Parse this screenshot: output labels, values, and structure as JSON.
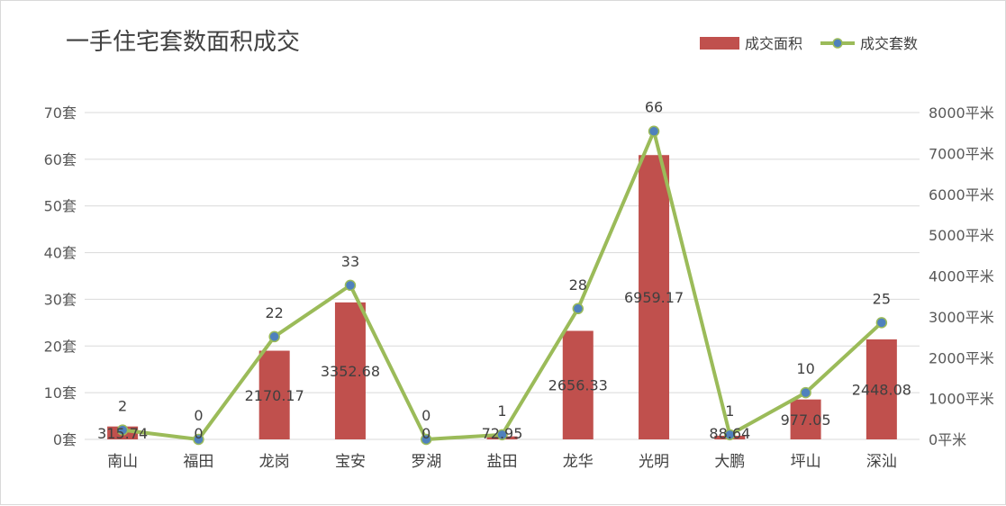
{
  "chart_data": {
    "type": "bar",
    "title": "一手住宅套数面积成交",
    "categories": [
      "南山",
      "福田",
      "龙岗",
      "宝安",
      "罗湖",
      "盐田",
      "龙华",
      "光明",
      "大鹏",
      "坪山",
      "深汕"
    ],
    "series": [
      {
        "name": "成交面积",
        "type": "bar",
        "axis": "right",
        "color": "#c0504d",
        "values": [
          315.74,
          0,
          2170.17,
          3352.68,
          0,
          72.95,
          2656.33,
          6959.17,
          88.64,
          977.05,
          2448.08
        ],
        "labels": [
          "315.74",
          "0",
          "2170.17",
          "3352.68",
          "0",
          "72.95",
          "2656.33",
          "6959.17",
          "88.64",
          "977.05",
          "2448.08"
        ]
      },
      {
        "name": "成交套数",
        "type": "line",
        "axis": "left",
        "color": "#9bbb59",
        "marker_color": "#4f81bd",
        "values": [
          2,
          0,
          22,
          33,
          0,
          1,
          28,
          66,
          1,
          10,
          25
        ],
        "labels": [
          "2",
          "0",
          "22",
          "33",
          "0",
          "1",
          "28",
          "66",
          "1",
          "10",
          "25"
        ]
      }
    ],
    "y_left": {
      "min": 0,
      "max": 70,
      "step": 10,
      "ticks": [
        "0套",
        "10套",
        "20套",
        "30套",
        "40套",
        "50套",
        "60套",
        "70套"
      ]
    },
    "y_right": {
      "min": 0,
      "max": 8000,
      "step": 1000,
      "ticks": [
        "0平米",
        "1000平米",
        "2000平米",
        "3000平米",
        "4000平米",
        "5000平米",
        "6000平米",
        "7000平米",
        "8000平米"
      ]
    },
    "legend_position": "top-right",
    "grid": true
  },
  "colors": {
    "gridline": "#d9d9d9",
    "bar": "#c0504d",
    "line": "#9bbb59",
    "marker": "#4f81bd"
  }
}
